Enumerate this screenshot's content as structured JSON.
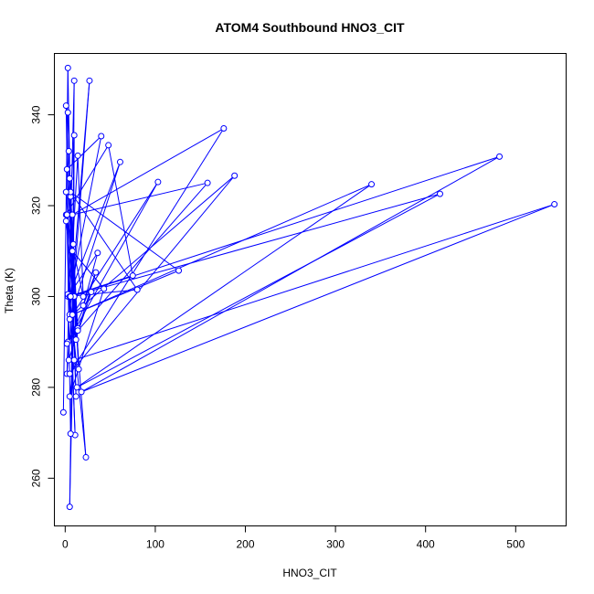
{
  "chart_data": {
    "type": "line",
    "title": "ATOM4 Southbound HNO3_CIT",
    "xlabel": "HNO3_CIT",
    "ylabel": "Theta (K)",
    "xlim": [
      -12,
      556
    ],
    "ylim": [
      249.5,
      353.5
    ],
    "xticks": [
      0,
      100,
      200,
      300,
      400,
      500
    ],
    "yticks": [
      260,
      280,
      300,
      320,
      340
    ],
    "grid": false,
    "legend": "none",
    "series_color": "#0000ff",
    "series": [
      {
        "points": [
          [
            -2,
            274.5
          ],
          [
            3,
            350.3
          ],
          [
            8,
            296
          ],
          [
            10,
            347.5
          ],
          [
            2,
            283
          ],
          [
            27,
            347.5
          ],
          [
            5,
            296
          ],
          [
            1,
            342
          ],
          [
            12,
            278
          ],
          [
            3,
            340.5
          ],
          [
            9,
            300
          ],
          [
            10,
            335.5
          ],
          [
            6,
            322
          ],
          [
            4,
            332
          ],
          [
            15,
            284
          ],
          [
            2,
            328
          ],
          [
            40,
            335.3
          ],
          [
            5,
            300
          ],
          [
            14,
            331
          ],
          [
            20,
            300
          ],
          [
            1,
            318
          ],
          [
            48,
            333.3
          ],
          [
            75,
            304.6
          ],
          [
            4,
            300
          ],
          [
            61,
            329.6
          ],
          [
            5,
            295
          ],
          [
            103,
            325.2
          ],
          [
            3,
            290
          ],
          [
            158,
            325
          ],
          [
            8,
            318
          ],
          [
            176,
            337
          ],
          [
            5,
            283
          ],
          [
            188,
            326.6
          ],
          [
            8,
            296
          ],
          [
            126,
            305.7
          ],
          [
            6,
            323
          ],
          [
            80,
            301.5
          ],
          [
            3,
            300
          ],
          [
            36,
            309.6
          ],
          [
            20,
            298
          ],
          [
            34,
            305.3
          ],
          [
            4,
            286
          ],
          [
            29,
            301
          ],
          [
            2,
            289.6
          ],
          [
            14,
            293
          ],
          [
            1,
            316.6
          ],
          [
            9,
            311.5
          ],
          [
            3,
            300.5
          ],
          [
            12,
            290.5
          ],
          [
            5,
            326
          ],
          [
            14,
            292.5
          ],
          [
            1,
            323
          ],
          [
            23,
            264.6
          ],
          [
            5,
            300
          ],
          [
            11,
            269.5
          ],
          [
            2,
            318
          ],
          [
            6,
            269.8
          ],
          [
            10,
            300
          ],
          [
            5,
            253.7
          ],
          [
            8,
            296
          ],
          [
            340,
            324.7
          ],
          [
            13,
            280
          ],
          [
            416,
            322.6
          ],
          [
            6,
            300
          ],
          [
            482,
            330.8
          ],
          [
            18,
            279
          ],
          [
            543,
            320.3
          ],
          [
            10,
            286
          ],
          [
            5,
            278
          ],
          [
            43,
            301.7
          ],
          [
            8,
            310
          ]
        ]
      }
    ]
  }
}
